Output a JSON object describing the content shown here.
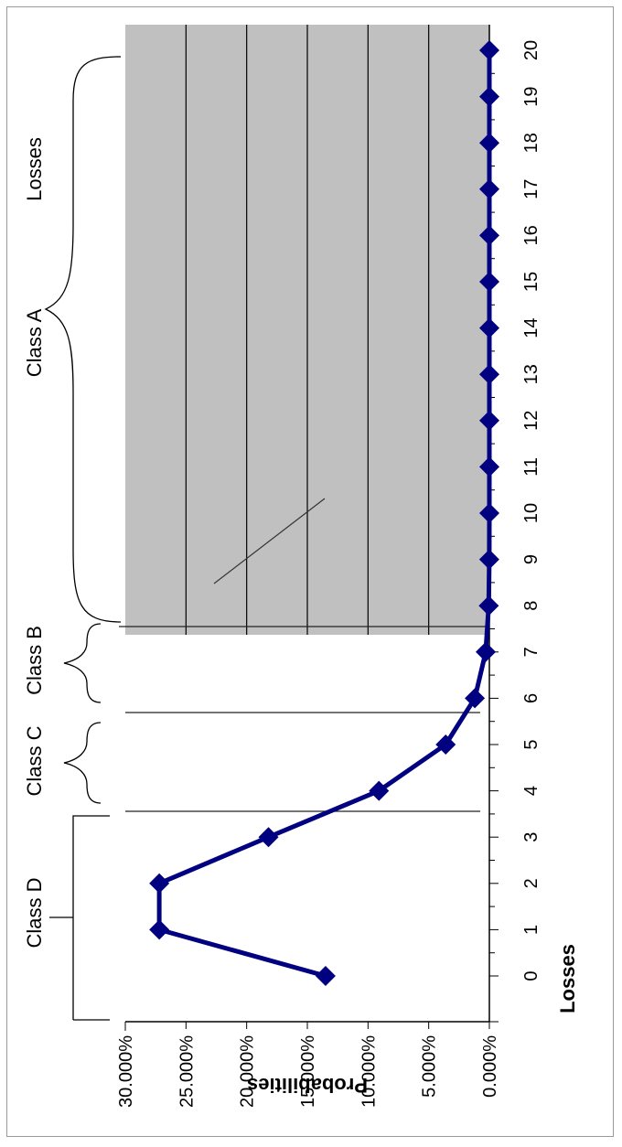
{
  "chart_data": {
    "type": "line",
    "xlabel": "Losses",
    "ylabel": "Probabilities",
    "x": [
      0,
      1,
      2,
      3,
      4,
      5,
      6,
      7,
      8,
      9,
      10,
      11,
      12,
      13,
      14,
      15,
      16,
      17,
      18,
      19,
      20
    ],
    "series": [
      {
        "values": [
          13.5,
          27.2,
          27.2,
          18.2,
          9.1,
          3.6,
          1.2,
          0.3,
          0.05,
          0.01,
          0,
          0,
          0,
          0,
          0,
          0,
          0,
          0,
          0,
          0,
          0
        ]
      }
    ],
    "ylim": [
      0,
      30
    ],
    "y_ticks": [
      "30.000%",
      "25.000%",
      "20.000%",
      "15.000%",
      "10.000%",
      "5.000%",
      "0.000%"
    ],
    "x_ticks": [
      "0",
      "1",
      "2",
      "3",
      "4",
      "5",
      "6",
      "7",
      "8",
      "9",
      "10",
      "11",
      "12",
      "13",
      "14",
      "15",
      "16",
      "17",
      "18",
      "19",
      "20"
    ],
    "grid": true,
    "orientation": "rotated 90° clockwise",
    "colors": {
      "plot_background": "#c0c0c0",
      "series": "#000080",
      "gridline": "#000000"
    },
    "annotations": {
      "class_d": "Class D",
      "class_c": "Class C",
      "class_b": "Class B",
      "class_a": "Class A",
      "losses": "Losses"
    }
  }
}
